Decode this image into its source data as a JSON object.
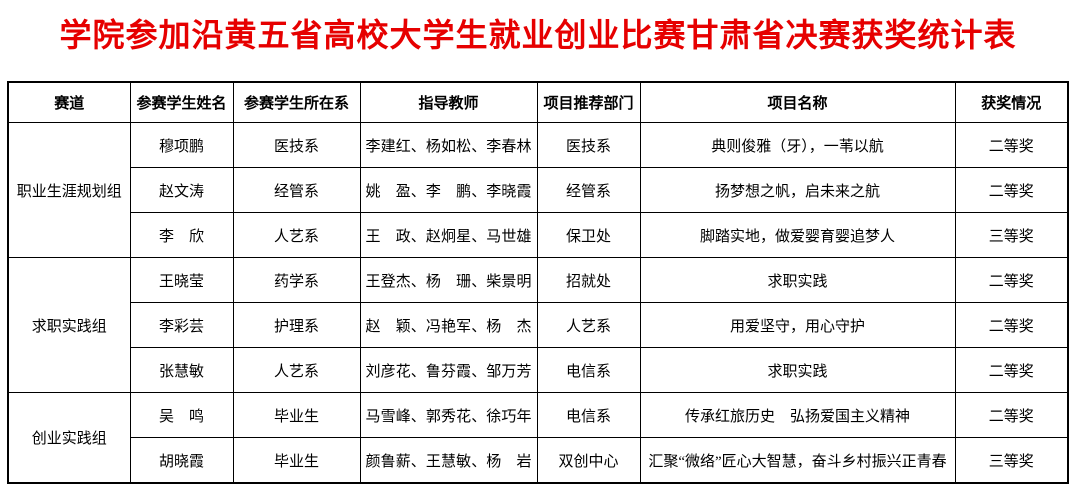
{
  "title": "学院参加沿黄五省高校大学生就业创业比赛甘肃省决赛获奖统计表",
  "title_color": "#e60000",
  "table": {
    "headers": [
      "赛道",
      "参赛学生姓名",
      "参赛学生所在系",
      "指导教师",
      "项目推荐部门",
      "项目名称",
      "获奖情况"
    ],
    "groups": [
      {
        "track": "职业生涯规划组",
        "rows": [
          {
            "student": "穆项鹏",
            "department": "医技系",
            "advisors": "李建红、杨如松、李春林",
            "recommender": "医技系",
            "project": "典则俊雅（牙），一苇以航",
            "award": "二等奖"
          },
          {
            "student": "赵文涛",
            "department": "经管系",
            "advisors": "姚　盈、李　鹏、李晓霞",
            "recommender": "经管系",
            "project": "扬梦想之帆，启未来之航",
            "award": "二等奖"
          },
          {
            "student": "李　欣",
            "department": "人艺系",
            "advisors": "王　政、赵炯星、马世雄",
            "recommender": "保卫处",
            "project": "脚踏实地，做爱婴育婴追梦人",
            "award": "三等奖"
          }
        ]
      },
      {
        "track": "求职实践组",
        "rows": [
          {
            "student": "王晓莹",
            "department": "药学系",
            "advisors": "王登杰、杨　珊、柴景明",
            "recommender": "招就处",
            "project": "求职实践",
            "award": "二等奖"
          },
          {
            "student": "李彩芸",
            "department": "护理系",
            "advisors": "赵　颖、冯艳军、杨　杰",
            "recommender": "人艺系",
            "project": "用爱坚守，用心守护",
            "award": "二等奖"
          },
          {
            "student": "张慧敏",
            "department": "人艺系",
            "advisors": "刘彦花、鲁芬霞、邹万芳",
            "recommender": "电信系",
            "project": "求职实践",
            "award": "二等奖"
          }
        ]
      },
      {
        "track": "创业实践组",
        "rows": [
          {
            "student": "吴　鸣",
            "department": "毕业生",
            "advisors": "马雪峰、郭秀花、徐巧年",
            "recommender": "电信系",
            "project": "传承红旅历史　弘扬爱国主义精神",
            "award": "二等奖"
          },
          {
            "student": "胡晓霞",
            "department": "毕业生",
            "advisors": "颜鲁薪、王慧敏、杨　岩",
            "recommender": "双创中心",
            "project": "汇聚“微络”匠心大智慧，奋斗乡村振兴正青春",
            "award": "三等奖"
          }
        ]
      }
    ]
  }
}
